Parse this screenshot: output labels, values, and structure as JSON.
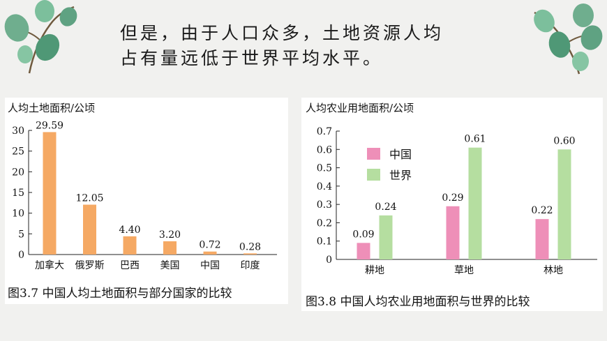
{
  "heading": {
    "line1": "但是，由于人口众多，土地资源人均",
    "line2": "占有量远低于世界平均水平。"
  },
  "decor": {
    "left_icon": "eucalyptus-leaf-icon",
    "right_icon": "eucalyptus-leaf-icon"
  },
  "chart_data": [
    {
      "type": "bar",
      "title": "人均土地面积/公顷",
      "caption": "图3.7  中国人均土地面积与部分国家的比较",
      "categories": [
        "加拿大",
        "俄罗斯",
        "巴西",
        "美国",
        "中国",
        "印度"
      ],
      "values": [
        29.59,
        12.05,
        4.4,
        3.2,
        0.72,
        0.28
      ],
      "value_labels": [
        "29.59",
        "12.05",
        "4.40",
        "3.20",
        "0.72",
        "0.28"
      ],
      "ylim": [
        0,
        30
      ],
      "yticks": [
        "0",
        "5",
        "10",
        "15",
        "20",
        "25",
        "30"
      ],
      "color": "#f5a964",
      "grid": false
    },
    {
      "type": "bar",
      "title": "人均农业用地面积/公顷",
      "caption": "图3.8  中国人均农业用地面积与世界的比较",
      "categories": [
        "耕地",
        "草地",
        "林地"
      ],
      "series": [
        {
          "name": "中国",
          "values": [
            0.09,
            0.29,
            0.22
          ],
          "labels": [
            "0.09",
            "0.29",
            "0.22"
          ],
          "color": "#ee8fb8"
        },
        {
          "name": "世界",
          "values": [
            0.24,
            0.61,
            0.6
          ],
          "labels": [
            "0.24",
            "0.61",
            "0.60"
          ],
          "color": "#b5dea0"
        }
      ],
      "ylim": [
        0,
        0.7
      ],
      "yticks": [
        "0",
        "0.1",
        "0.2",
        "0.3",
        "0.4",
        "0.5",
        "0.6",
        "0.7"
      ],
      "legend": "top-left",
      "grid": false
    }
  ]
}
